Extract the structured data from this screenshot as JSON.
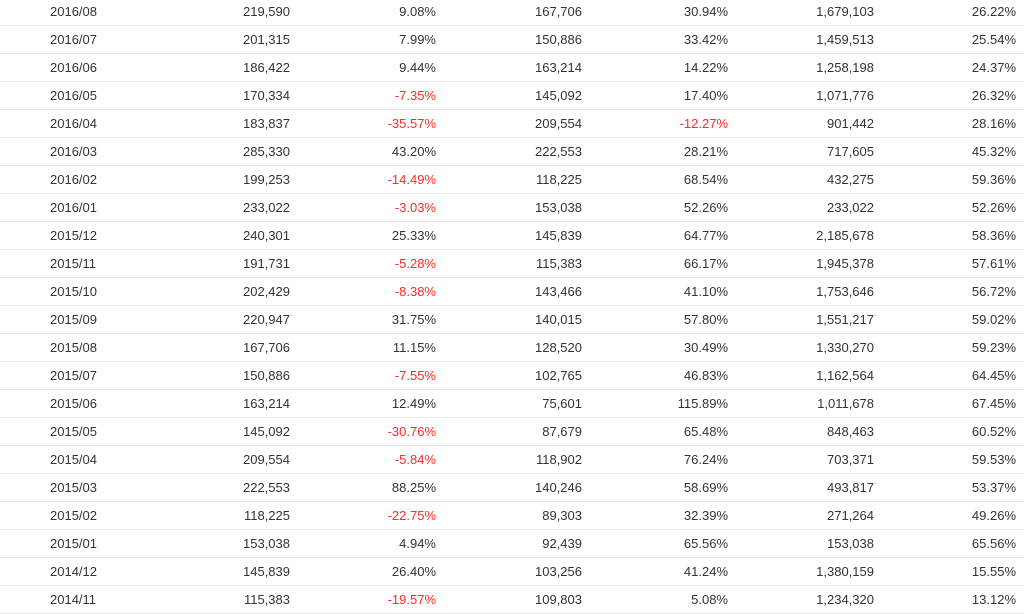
{
  "table": {
    "rows": [
      {
        "month": "2016/08",
        "value": "219,590",
        "change": "9.08%",
        "prev_value": "167,706",
        "yoy": "30.94%",
        "cumulative": "1,679,103",
        "share": "26.22%"
      },
      {
        "month": "2016/07",
        "value": "201,315",
        "change": "7.99%",
        "prev_value": "150,886",
        "yoy": "33.42%",
        "cumulative": "1,459,513",
        "share": "25.54%"
      },
      {
        "month": "2016/06",
        "value": "186,422",
        "change": "9.44%",
        "prev_value": "163,214",
        "yoy": "14.22%",
        "cumulative": "1,258,198",
        "share": "24.37%"
      },
      {
        "month": "2016/05",
        "value": "170,334",
        "change": "-7.35%",
        "prev_value": "145,092",
        "yoy": "17.40%",
        "cumulative": "1,071,776",
        "share": "26.32%"
      },
      {
        "month": "2016/04",
        "value": "183,837",
        "change": "-35.57%",
        "prev_value": "209,554",
        "yoy": "-12.27%",
        "cumulative": "901,442",
        "share": "28.16%"
      },
      {
        "month": "2016/03",
        "value": "285,330",
        "change": "43.20%",
        "prev_value": "222,553",
        "yoy": "28.21%",
        "cumulative": "717,605",
        "share": "45.32%"
      },
      {
        "month": "2016/02",
        "value": "199,253",
        "change": "-14.49%",
        "prev_value": "118,225",
        "yoy": "68.54%",
        "cumulative": "432,275",
        "share": "59.36%"
      },
      {
        "month": "2016/01",
        "value": "233,022",
        "change": "-3.03%",
        "prev_value": "153,038",
        "yoy": "52.26%",
        "cumulative": "233,022",
        "share": "52.26%"
      },
      {
        "month": "2015/12",
        "value": "240,301",
        "change": "25.33%",
        "prev_value": "145,839",
        "yoy": "64.77%",
        "cumulative": "2,185,678",
        "share": "58.36%"
      },
      {
        "month": "2015/11",
        "value": "191,731",
        "change": "-5.28%",
        "prev_value": "115,383",
        "yoy": "66.17%",
        "cumulative": "1,945,378",
        "share": "57.61%"
      },
      {
        "month": "2015/10",
        "value": "202,429",
        "change": "-8.38%",
        "prev_value": "143,466",
        "yoy": "41.10%",
        "cumulative": "1,753,646",
        "share": "56.72%"
      },
      {
        "month": "2015/09",
        "value": "220,947",
        "change": "31.75%",
        "prev_value": "140,015",
        "yoy": "57.80%",
        "cumulative": "1,551,217",
        "share": "59.02%"
      },
      {
        "month": "2015/08",
        "value": "167,706",
        "change": "11.15%",
        "prev_value": "128,520",
        "yoy": "30.49%",
        "cumulative": "1,330,270",
        "share": "59.23%"
      },
      {
        "month": "2015/07",
        "value": "150,886",
        "change": "-7.55%",
        "prev_value": "102,765",
        "yoy": "46.83%",
        "cumulative": "1,162,564",
        "share": "64.45%"
      },
      {
        "month": "2015/06",
        "value": "163,214",
        "change": "12.49%",
        "prev_value": "75,601",
        "yoy": "115.89%",
        "cumulative": "1,011,678",
        "share": "67.45%"
      },
      {
        "month": "2015/05",
        "value": "145,092",
        "change": "-30.76%",
        "prev_value": "87,679",
        "yoy": "65.48%",
        "cumulative": "848,463",
        "share": "60.52%"
      },
      {
        "month": "2015/04",
        "value": "209,554",
        "change": "-5.84%",
        "prev_value": "118,902",
        "yoy": "76.24%",
        "cumulative": "703,371",
        "share": "59.53%"
      },
      {
        "month": "2015/03",
        "value": "222,553",
        "change": "88.25%",
        "prev_value": "140,246",
        "yoy": "58.69%",
        "cumulative": "493,817",
        "share": "53.37%"
      },
      {
        "month": "2015/02",
        "value": "118,225",
        "change": "-22.75%",
        "prev_value": "89,303",
        "yoy": "32.39%",
        "cumulative": "271,264",
        "share": "49.26%"
      },
      {
        "month": "2015/01",
        "value": "153,038",
        "change": "4.94%",
        "prev_value": "92,439",
        "yoy": "65.56%",
        "cumulative": "153,038",
        "share": "65.56%"
      },
      {
        "month": "2014/12",
        "value": "145,839",
        "change": "26.40%",
        "prev_value": "103,256",
        "yoy": "41.24%",
        "cumulative": "1,380,159",
        "share": "15.55%"
      },
      {
        "month": "2014/11",
        "value": "115,383",
        "change": "-19.57%",
        "prev_value": "109,803",
        "yoy": "5.08%",
        "cumulative": "1,234,320",
        "share": "13.12%"
      }
    ]
  },
  "colors": {
    "text": "#333333",
    "negative": "#ff2a2a",
    "row_border": "#e8e8e8"
  }
}
